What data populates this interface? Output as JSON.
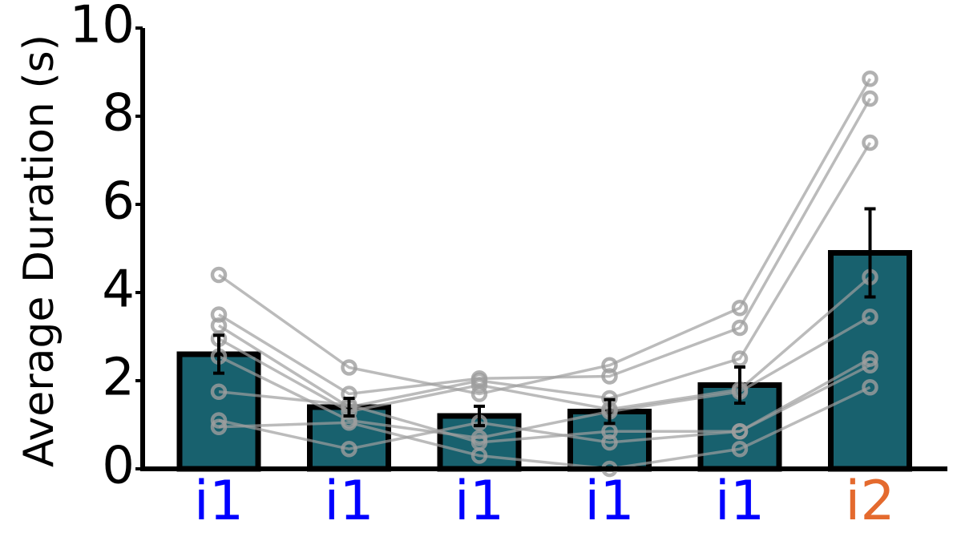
{
  "chart_data": {
    "type": "bar",
    "title": "",
    "xlabel": "",
    "ylabel": "Average Duration (s)",
    "ylim": [
      0,
      10
    ],
    "yticks": [
      0,
      2,
      4,
      6,
      8,
      10
    ],
    "categories": [
      "i1",
      "i1",
      "i1",
      "i1",
      "i1",
      "i2"
    ],
    "category_colors": [
      "#0000ff",
      "#0000ff",
      "#0000ff",
      "#0000ff",
      "#0000ff",
      "#e46a2e"
    ],
    "values": [
      2.6,
      1.4,
      1.2,
      1.3,
      1.9,
      4.9
    ],
    "errors": [
      0.43,
      0.2,
      0.22,
      0.27,
      0.41,
      1.0
    ],
    "bar_color": "#18616e",
    "subjects": [
      [
        4.4,
        2.3,
        1.7,
        2.35,
        3.65,
        8.85
      ],
      [
        3.5,
        1.7,
        2.05,
        2.1,
        3.2,
        8.4
      ],
      [
        3.25,
        1.4,
        2.0,
        1.6,
        2.5,
        7.4
      ],
      [
        2.95,
        1.3,
        1.9,
        1.35,
        1.8,
        4.35
      ],
      [
        2.55,
        1.1,
        0.7,
        1.3,
        1.75,
        3.45
      ],
      [
        1.75,
        1.45,
        0.6,
        0.85,
        0.85,
        2.5
      ],
      [
        1.1,
        0.45,
        1.05,
        0.6,
        0.85,
        2.35
      ],
      [
        0.95,
        1.05,
        0.3,
        0.0,
        0.45,
        1.85
      ]
    ],
    "subject_color": "#9e9e9e"
  }
}
